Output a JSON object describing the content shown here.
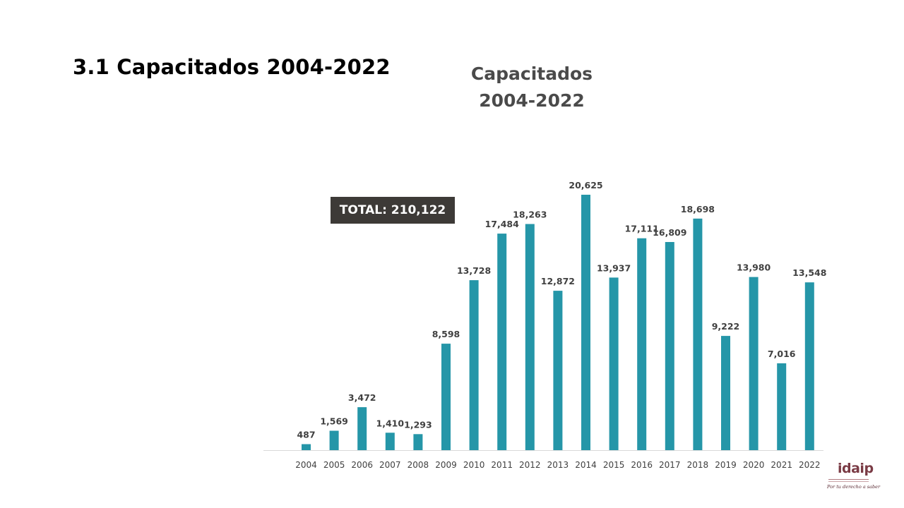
{
  "slide": {
    "title": "3.1 Capacitados 2004-2022"
  },
  "total_label": "TOTAL: 210,122",
  "logo": {
    "name": "idaip",
    "tagline": "Por tu derecho a saber"
  },
  "colors": {
    "bar": "#2596a8",
    "axis": "#d9d9d9",
    "label": "#404040",
    "tick": "#404040"
  },
  "chart_data": {
    "type": "bar",
    "title_lines": [
      "Capacitados",
      "2004-2022"
    ],
    "categories": [
      "2004",
      "2005",
      "2006",
      "2007",
      "2008",
      "2009",
      "2010",
      "2011",
      "2012",
      "2013",
      "2014",
      "2015",
      "2016",
      "2017",
      "2018",
      "2019",
      "2020",
      "2021",
      "2022"
    ],
    "values": [
      487,
      1569,
      3472,
      1410,
      1293,
      8598,
      13728,
      17484,
      18263,
      12872,
      20625,
      13937,
      17111,
      16809,
      18698,
      9222,
      13980,
      7016,
      13548
    ],
    "value_labels": [
      "487",
      "1,569",
      "3,472",
      "1,410",
      "1,293",
      "8,598",
      "13,728",
      "17,484",
      "18,263",
      "12,872",
      "20,625",
      "13,937",
      "17,111",
      "16,809",
      "18,698",
      "9,222",
      "13,980",
      "7,016",
      "13,548"
    ],
    "xlabel": "",
    "ylabel": "",
    "ylim": [
      0,
      20625
    ],
    "grid": false,
    "legend": "none"
  }
}
